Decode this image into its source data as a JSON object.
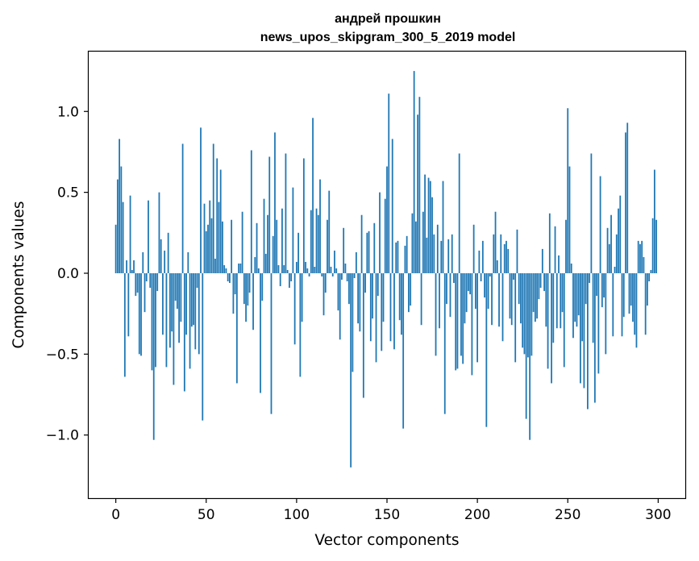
{
  "chart_data": {
    "type": "bar",
    "title_line1": "андрей прошкин",
    "title_line2": "news_upos_skipgram_300_5_2019 model",
    "xlabel": "Vector components",
    "ylabel": "Components values",
    "xlim": [
      -15,
      315
    ],
    "ylim": [
      -1.39,
      1.37
    ],
    "xticks": [
      0,
      50,
      100,
      150,
      200,
      250,
      300
    ],
    "yticks": [
      -1.0,
      -0.5,
      0.0,
      0.5,
      1.0
    ],
    "ytick_labels": [
      "−1.0",
      "−0.5",
      "0.0",
      "0.5",
      "1.0"
    ],
    "bar_color": "#1f77b4",
    "grid": false,
    "series": [
      {
        "name": "components",
        "x_start": 0,
        "values": [
          0.3,
          0.58,
          0.83,
          0.66,
          0.44,
          -0.64,
          0.08,
          -0.39,
          0.48,
          0.02,
          0.08,
          -0.14,
          -0.12,
          -0.5,
          -0.51,
          0.13,
          -0.24,
          -0.05,
          0.45,
          -0.09,
          -0.6,
          -1.03,
          -0.58,
          -0.11,
          0.5,
          0.21,
          -0.38,
          0.14,
          -0.58,
          0.25,
          -0.46,
          -0.36,
          -0.69,
          -0.17,
          -0.22,
          -0.43,
          -0.3,
          0.8,
          -0.73,
          -0.38,
          0.13,
          -0.59,
          -0.33,
          -0.32,
          -0.47,
          -0.09,
          -0.5,
          0.9,
          -0.91,
          0.43,
          0.26,
          0.3,
          0.45,
          0.34,
          0.8,
          0.09,
          0.71,
          0.44,
          0.64,
          0.32,
          0.05,
          0.03,
          -0.05,
          -0.06,
          0.33,
          -0.25,
          -0.13,
          -0.68,
          0.06,
          0.06,
          0.38,
          -0.19,
          -0.3,
          -0.2,
          -0.12,
          0.76,
          -0.35,
          0.1,
          0.31,
          0.03,
          -0.74,
          -0.17,
          0.46,
          0.12,
          0.36,
          0.72,
          -0.87,
          0.23,
          0.87,
          0.33,
          0.05,
          -0.08,
          0.4,
          0.05,
          0.74,
          0.02,
          -0.09,
          -0.05,
          0.53,
          -0.44,
          0.07,
          0.25,
          -0.64,
          -0.3,
          0.71,
          0.07,
          0.03,
          -0.02,
          0.39,
          0.96,
          0.04,
          0.4,
          0.36,
          0.58,
          -0.02,
          -0.26,
          -0.12,
          0.33,
          0.51,
          0.04,
          -0.02,
          0.14,
          0.03,
          -0.23,
          -0.41,
          -0.04,
          0.28,
          0.06,
          -0.05,
          -0.19,
          -1.2,
          -0.61,
          -0.03,
          0.13,
          -0.31,
          -0.36,
          0.36,
          -0.77,
          -0.12,
          0.25,
          0.26,
          -0.42,
          -0.28,
          0.31,
          -0.55,
          -0.14,
          0.5,
          -0.48,
          -0.3,
          0.46,
          0.66,
          1.11,
          -0.42,
          0.83,
          -0.47,
          0.19,
          0.2,
          -0.29,
          -0.38,
          -0.96,
          0.17,
          0.23,
          -0.24,
          -0.2,
          0.37,
          1.25,
          0.32,
          0.98,
          1.09,
          -0.32,
          0.38,
          0.61,
          0.22,
          0.59,
          0.57,
          0.47,
          0.24,
          -0.51,
          0.3,
          -0.34,
          0.2,
          0.57,
          -0.87,
          -0.19,
          0.21,
          -0.27,
          0.24,
          -0.06,
          -0.6,
          -0.59,
          0.74,
          -0.51,
          -0.56,
          -0.31,
          -0.24,
          -0.11,
          -0.13,
          -0.63,
          0.3,
          -0.22,
          -0.55,
          0.14,
          -0.05,
          0.2,
          -0.15,
          -0.95,
          -0.22,
          -0.02,
          -0.32,
          0.24,
          0.38,
          0.08,
          -0.33,
          0.24,
          -0.42,
          0.18,
          0.2,
          0.15,
          -0.28,
          -0.32,
          -0.04,
          -0.55,
          0.27,
          -0.19,
          -0.31,
          -0.46,
          -0.5,
          -0.9,
          -0.52,
          -1.03,
          -0.51,
          -0.24,
          -0.3,
          -0.28,
          -0.16,
          -0.09,
          0.15,
          -0.11,
          -0.33,
          -0.59,
          0.37,
          -0.68,
          -0.43,
          0.29,
          -0.34,
          0.11,
          -0.34,
          -0.24,
          -0.58,
          0.33,
          1.02,
          0.66,
          0.06,
          -0.4,
          -0.3,
          -0.33,
          -0.26,
          -0.68,
          -0.42,
          -0.71,
          -0.19,
          -0.84,
          -0.06,
          0.74,
          -0.43,
          -0.8,
          -0.14,
          -0.62,
          0.6,
          -0.21,
          -0.15,
          -0.5,
          0.28,
          0.18,
          0.36,
          -0.39,
          0.04,
          0.24,
          0.4,
          0.48,
          -0.39,
          -0.27,
          0.87,
          0.93,
          -0.25,
          -0.2,
          -0.3,
          -0.38,
          -0.46,
          0.2,
          0.18,
          0.2,
          0.1,
          -0.38,
          -0.2,
          -0.05,
          0.02,
          0.34,
          0.64,
          0.33
        ]
      }
    ]
  }
}
